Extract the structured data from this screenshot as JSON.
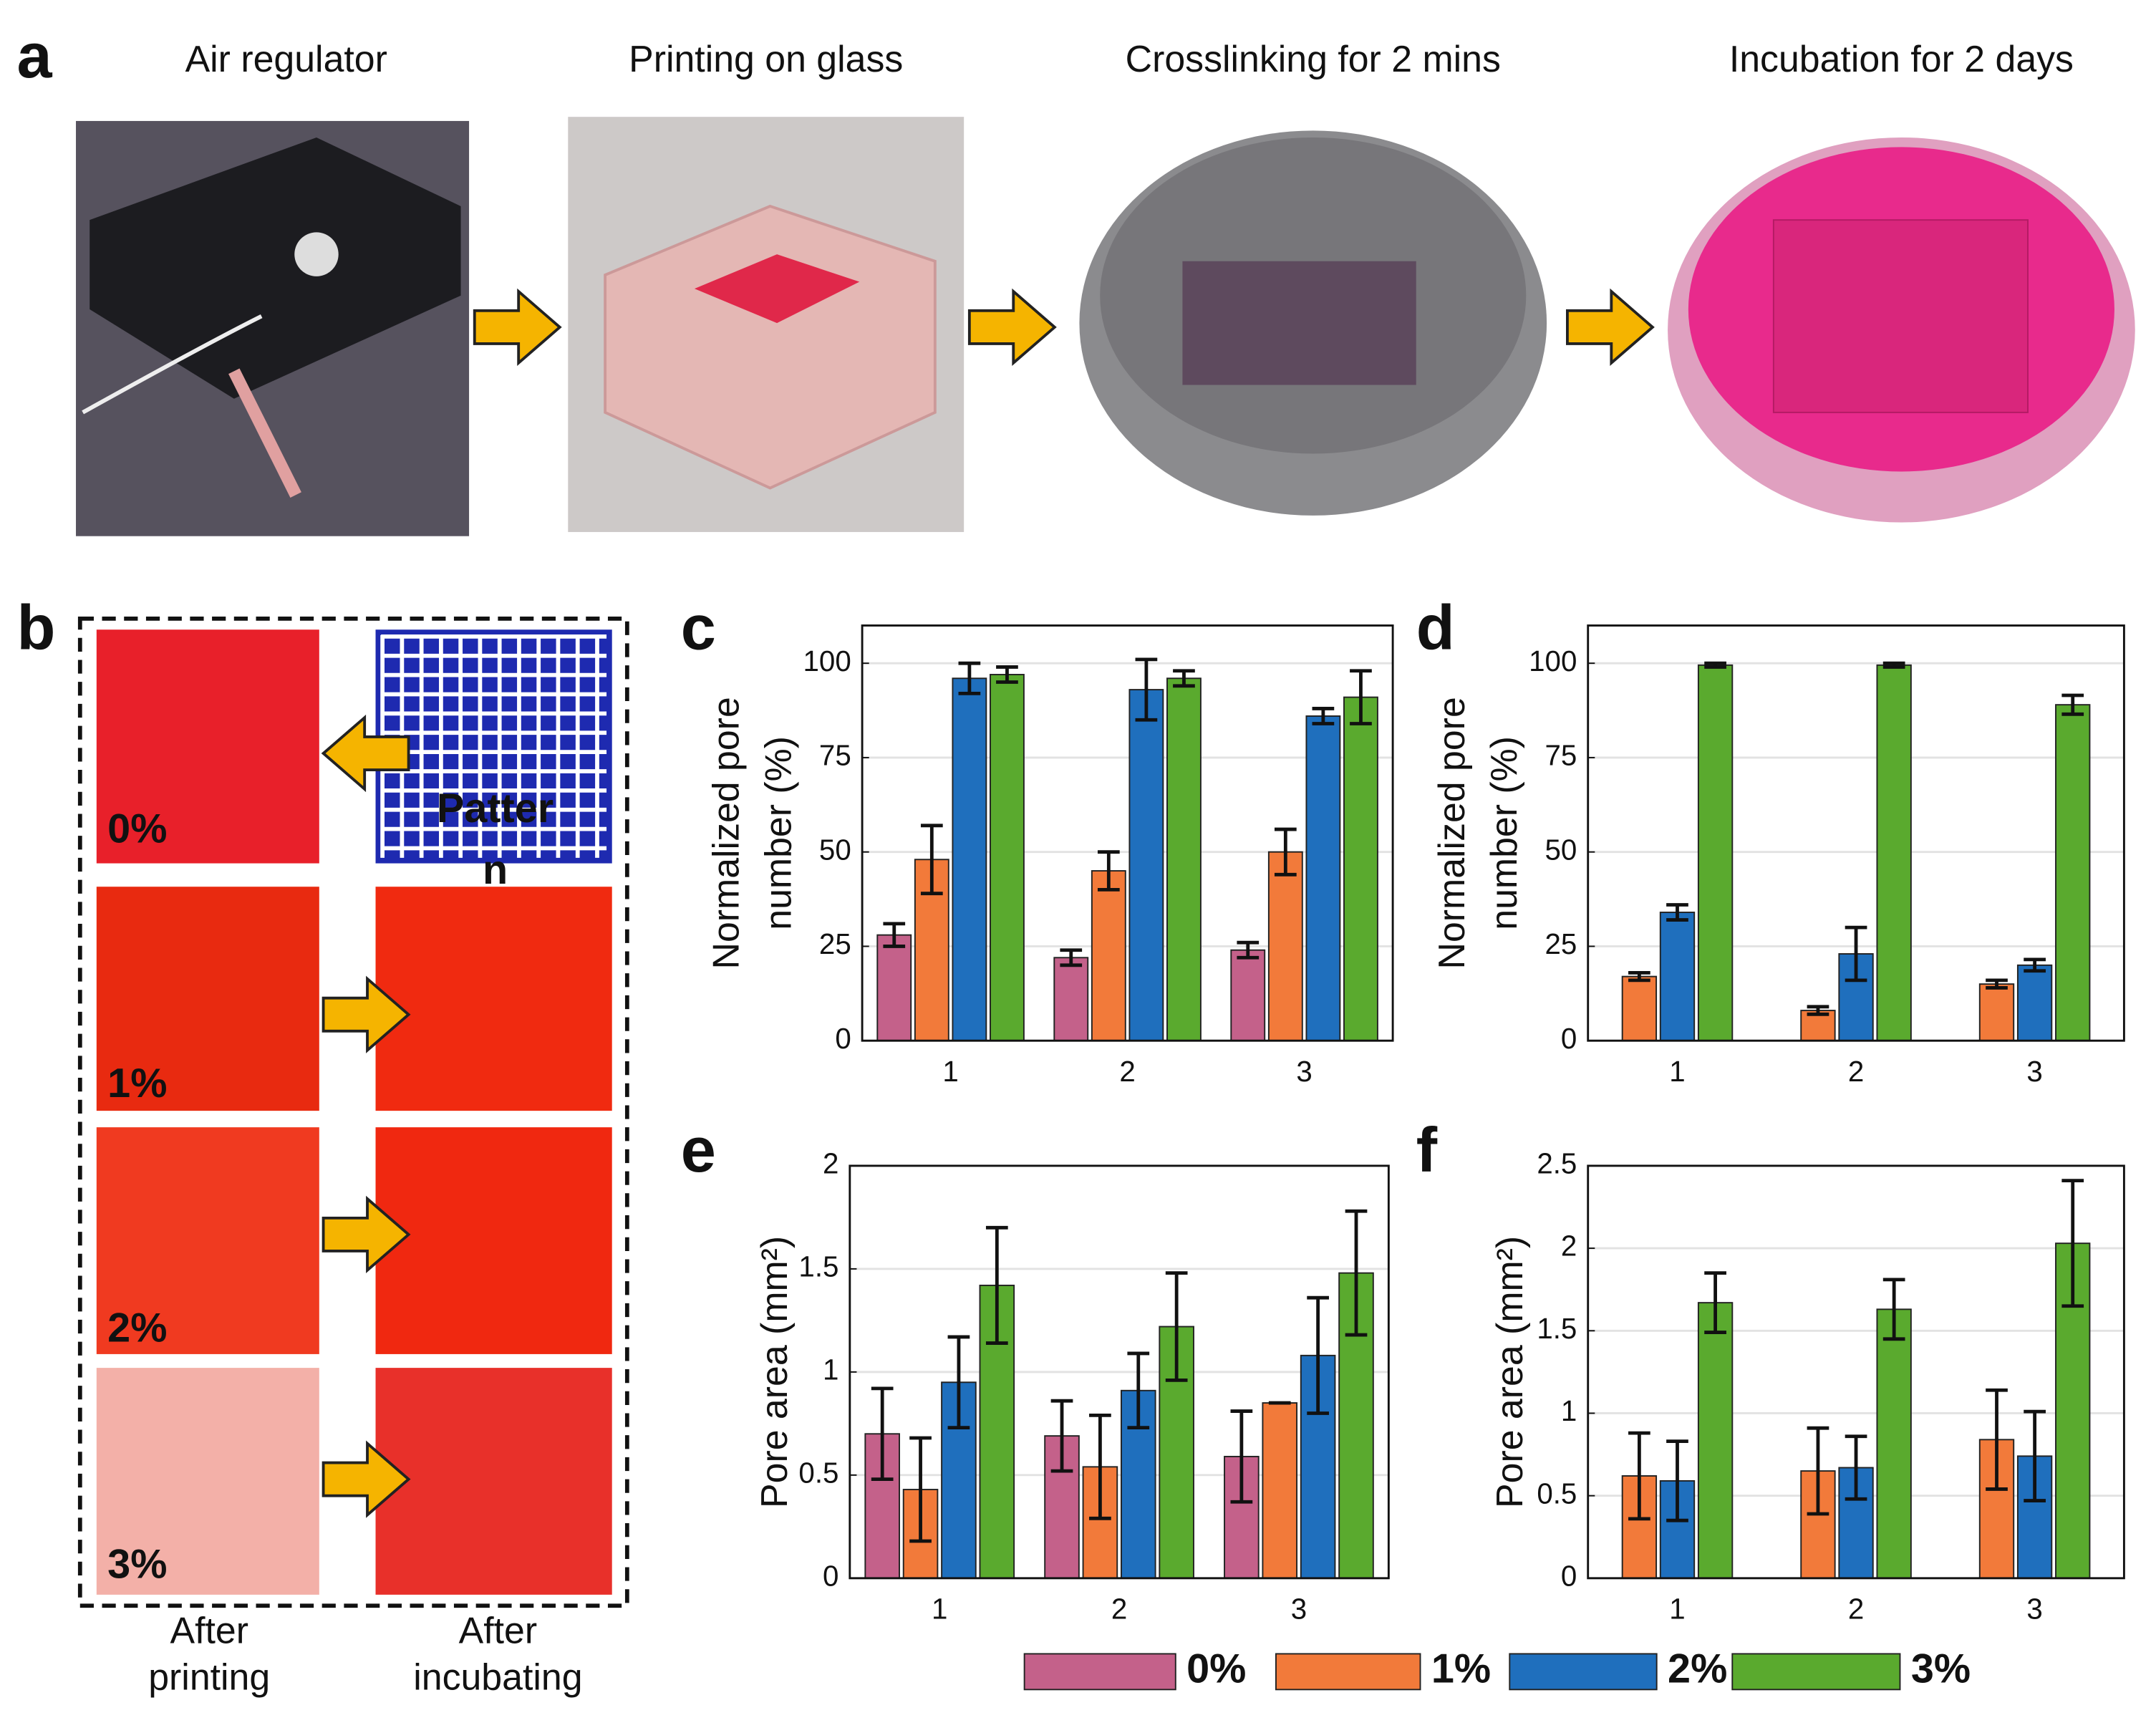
{
  "panel_a": {
    "label": "a",
    "steps": [
      "Air regulator",
      "Printing on glass",
      "Crosslinking for 2 mins",
      "Incubation for 2 days"
    ]
  },
  "panel_b": {
    "label": "b",
    "concentrations": [
      "0%",
      "1%",
      "2%",
      "3%"
    ],
    "pattern_label": [
      "Patter",
      "n"
    ],
    "captions": [
      [
        "After",
        "printing"
      ],
      [
        "After",
        "incubating"
      ]
    ]
  },
  "chart_data": [
    {
      "type": "bar",
      "panel": "c",
      "ylabel": [
        "Normalized pore",
        "number (%)"
      ],
      "categories": [
        "1",
        "2",
        "3"
      ],
      "ylim": [
        0,
        110
      ],
      "yticks": [
        0,
        25,
        50,
        75,
        100
      ],
      "grid": true,
      "series": [
        {
          "name": "0%",
          "color": "#c4618a",
          "values": [
            28,
            22,
            24
          ],
          "errors": [
            3,
            2,
            2
          ]
        },
        {
          "name": "1%",
          "color": "#f27a3a",
          "values": [
            48,
            45,
            50
          ],
          "errors": [
            9,
            5,
            6
          ]
        },
        {
          "name": "2%",
          "color": "#1f6fbd",
          "values": [
            96,
            93,
            86
          ],
          "errors": [
            4,
            8,
            2
          ]
        },
        {
          "name": "3%",
          "color": "#5aaa2e",
          "values": [
            97,
            96,
            91
          ],
          "errors": [
            2,
            2,
            7
          ]
        }
      ]
    },
    {
      "type": "bar",
      "panel": "d",
      "ylabel": [
        "Normalized pore",
        "number (%)"
      ],
      "categories": [
        "1",
        "2",
        "3"
      ],
      "ylim": [
        0,
        110
      ],
      "yticks": [
        0,
        25,
        50,
        75,
        100
      ],
      "grid": true,
      "series": [
        {
          "name": "1%",
          "color": "#f27a3a",
          "values": [
            17,
            8,
            15
          ],
          "errors": [
            1,
            1,
            1
          ]
        },
        {
          "name": "2%",
          "color": "#1f6fbd",
          "values": [
            34,
            23,
            20
          ],
          "errors": [
            2,
            7,
            1.5
          ]
        },
        {
          "name": "3%",
          "color": "#5aaa2e",
          "values": [
            99.5,
            99.5,
            89
          ],
          "errors": [
            0.5,
            0.5,
            2.5
          ]
        }
      ]
    },
    {
      "type": "bar",
      "panel": "e",
      "ylabel": [
        "Pore area (mm²)"
      ],
      "categories": [
        "1",
        "2",
        "3"
      ],
      "ylim": [
        0,
        2
      ],
      "yticks": [
        0,
        0.5,
        1,
        1.5,
        2
      ],
      "grid": true,
      "series": [
        {
          "name": "0%",
          "color": "#c4618a",
          "values": [
            0.7,
            0.69,
            0.59
          ],
          "errors": [
            0.22,
            0.17,
            0.22
          ]
        },
        {
          "name": "1%",
          "color": "#f27a3a",
          "values": [
            0.43,
            0.54,
            0.85
          ],
          "errors": [
            0.25,
            0.25,
            0
          ]
        },
        {
          "name": "2%",
          "color": "#1f6fbd",
          "values": [
            0.95,
            0.91,
            1.08
          ],
          "errors": [
            0.22,
            0.18,
            0.28
          ]
        },
        {
          "name": "3%",
          "color": "#5aaa2e",
          "values": [
            1.42,
            1.22,
            1.48
          ],
          "errors": [
            0.28,
            0.26,
            0.3
          ]
        }
      ]
    },
    {
      "type": "bar",
      "panel": "f",
      "ylabel": [
        "Pore area (mm²)"
      ],
      "categories": [
        "1",
        "2",
        "3"
      ],
      "ylim": [
        0,
        2.5
      ],
      "yticks": [
        0,
        0.5,
        1,
        1.5,
        2,
        2.5
      ],
      "grid": true,
      "series": [
        {
          "name": "1%",
          "color": "#f27a3a",
          "values": [
            0.62,
            0.65,
            0.84
          ],
          "errors": [
            0.26,
            0.26,
            0.3
          ]
        },
        {
          "name": "2%",
          "color": "#1f6fbd",
          "values": [
            0.59,
            0.67,
            0.74
          ],
          "errors": [
            0.24,
            0.19,
            0.27
          ]
        },
        {
          "name": "3%",
          "color": "#5aaa2e",
          "values": [
            1.67,
            1.63,
            2.03
          ],
          "errors": [
            0.18,
            0.18,
            0.38
          ]
        }
      ]
    }
  ]
}
